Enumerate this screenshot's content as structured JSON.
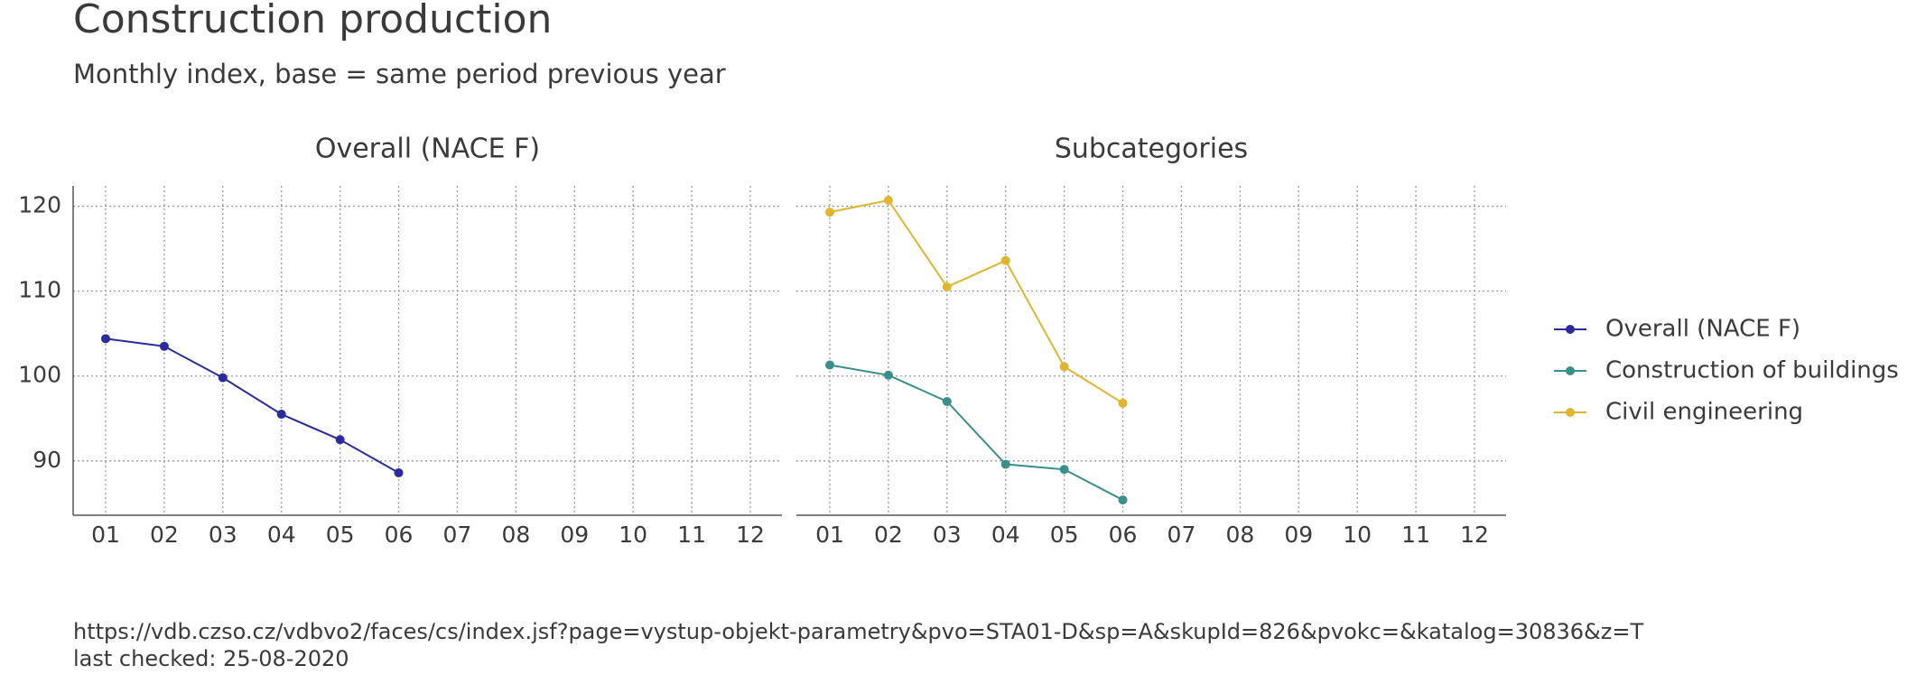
{
  "title": "Construction production",
  "subtitle": "Monthly index, base = same period previous year",
  "chart_data": [
    {
      "type": "line",
      "title": "Overall (NACE F)",
      "categories": [
        "01",
        "02",
        "03",
        "04",
        "05",
        "06",
        "07",
        "08",
        "09",
        "10",
        "11",
        "12"
      ],
      "series": [
        {
          "name": "Overall (NACE F)",
          "color": "#2b2b9b",
          "values": [
            104.4,
            103.5,
            99.8,
            95.5,
            92.5,
            88.6,
            null,
            null,
            null,
            null,
            null,
            null
          ]
        }
      ],
      "ylim": [
        83.6,
        122.4
      ],
      "yticks": [
        90,
        100,
        110,
        120
      ],
      "grid": true
    },
    {
      "type": "line",
      "title": "Subcategories",
      "categories": [
        "01",
        "02",
        "03",
        "04",
        "05",
        "06",
        "07",
        "08",
        "09",
        "10",
        "11",
        "12"
      ],
      "series": [
        {
          "name": "Construction of buildings",
          "color": "#3a8f8a",
          "values": [
            101.3,
            100.1,
            97.0,
            89.6,
            89.0,
            85.4,
            null,
            null,
            null,
            null,
            null,
            null
          ]
        },
        {
          "name": "Civil engineering",
          "color": "#e0b530",
          "values": [
            119.3,
            120.7,
            110.5,
            113.6,
            101.1,
            96.8,
            null,
            null,
            null,
            null,
            null,
            null
          ]
        }
      ],
      "ylim": [
        83.6,
        122.4
      ],
      "yticks": [
        90,
        100,
        110,
        120
      ],
      "grid": true
    }
  ],
  "caption": [
    "https://vdb.czso.cz/vdbvo2/faces/cs/index.jsf?page=vystup-objekt-parametry&pvo=STA01-D&sp=A&skupId=826&pvokc=&katalog=30836&z=T",
    "last checked: 25-08-2020"
  ]
}
